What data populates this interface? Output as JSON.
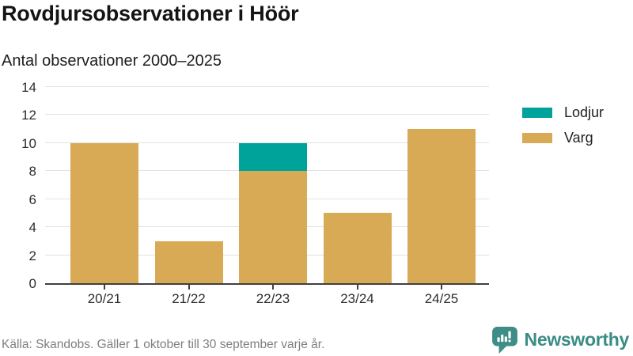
{
  "header": {
    "title": "Rovdjursobservationer i Höör",
    "subtitle": "Antal observationer 2000–2025"
  },
  "chart_data": {
    "type": "bar",
    "stacked": true,
    "categories": [
      "20/21",
      "21/22",
      "22/23",
      "23/24",
      "24/25"
    ],
    "series": [
      {
        "name": "Lodjur",
        "color": "#00a39a",
        "values": [
          0,
          0,
          2,
          0,
          0
        ]
      },
      {
        "name": "Varg",
        "color": "#d8aa55",
        "values": [
          10,
          3,
          8,
          5,
          11
        ]
      }
    ],
    "totals": [
      10,
      3,
      10,
      5,
      11
    ],
    "title": "Rovdjursobservationer i Höör",
    "subtitle": "Antal observationer 2000–2025",
    "xlabel": "",
    "ylabel": "",
    "ylim": [
      0,
      14
    ],
    "yticks": [
      0,
      2,
      4,
      6,
      8,
      10,
      12,
      14
    ],
    "grid": true,
    "legend_position": "right"
  },
  "footer": {
    "source": "Källa: Skandobs. Gäller 1 oktober till 30 september varje år."
  },
  "branding": {
    "name": "Newsworthy",
    "logo_icon": "bar-chart-speech-bubble-icon",
    "color": "#3a8c85"
  },
  "colors": {
    "axis": "#404040",
    "grid": "#e2e2e2",
    "lodjur": "#00a39a",
    "varg": "#d8aa55"
  }
}
